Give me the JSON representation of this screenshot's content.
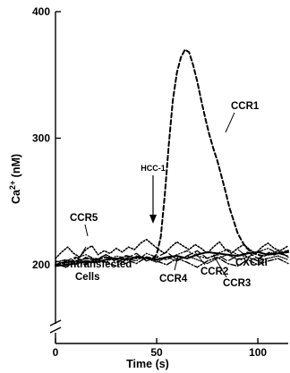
{
  "chart_data": {
    "type": "line",
    "title": "",
    "xlabel": "Time (s)",
    "ylabel": "Ca2+ (nM)",
    "ylabel_base": "Ca",
    "ylabel_sup": "2+",
    "ylabel_unit": " (nM)",
    "xlim": [
      0,
      115
    ],
    "ylim": [
      190,
      400
    ],
    "axis_break": true,
    "grid": false,
    "legend": "none",
    "x_ticks": [
      0,
      50,
      100
    ],
    "y_ticks": [
      200,
      300,
      400
    ],
    "x_tick_labels": [
      "0",
      "50",
      "100"
    ],
    "y_tick_labels": [
      "200",
      "300",
      "400"
    ],
    "stimulus": {
      "label": "HCC-1",
      "time": 48
    },
    "series": [
      {
        "name": "CCR1",
        "style": "dashed-bold",
        "x": [
          0,
          5,
          10,
          15,
          20,
          25,
          30,
          35,
          40,
          45,
          48,
          50,
          52,
          54,
          56,
          58,
          60,
          62,
          64,
          66,
          68,
          70,
          72,
          74,
          76,
          78,
          80,
          82,
          84,
          86,
          88,
          90,
          92,
          94,
          96,
          98,
          100,
          102,
          104,
          106,
          108,
          110,
          112,
          115
        ],
        "y": [
          200,
          202,
          203,
          205,
          204,
          206,
          204,
          207,
          205,
          206,
          205,
          208,
          222,
          255,
          295,
          330,
          352,
          364,
          370,
          368,
          358,
          345,
          330,
          316,
          303,
          292,
          282,
          270,
          258,
          245,
          235,
          225,
          219,
          214,
          211,
          209,
          208,
          207,
          208,
          210,
          208,
          209,
          210,
          211
        ]
      },
      {
        "name": "CCR5",
        "style": "dotted",
        "x": [
          0,
          3,
          6,
          9,
          12,
          15,
          18,
          21,
          24,
          27,
          30,
          33,
          36,
          39,
          42,
          45,
          48,
          51,
          54,
          57,
          60,
          63,
          66,
          69,
          72,
          75,
          78,
          81,
          84,
          87,
          90,
          93,
          96,
          99,
          102,
          105,
          108,
          111,
          115
        ],
        "y": [
          205,
          210,
          214,
          209,
          206,
          212,
          215,
          208,
          211,
          209,
          213,
          210,
          214,
          212,
          217,
          220,
          216,
          212,
          209,
          214,
          218,
          215,
          212,
          216,
          213,
          209,
          214,
          218,
          212,
          209,
          213,
          216,
          212,
          209,
          214,
          217,
          213,
          211,
          215
        ]
      },
      {
        "name": "Untransfected Cells",
        "style": "solid",
        "x": [
          0,
          5,
          10,
          15,
          20,
          25,
          30,
          35,
          40,
          45,
          50,
          55,
          60,
          65,
          70,
          75,
          80,
          85,
          90,
          95,
          100,
          105,
          110,
          115
        ],
        "y": [
          199,
          200,
          201,
          203,
          202,
          204,
          205,
          204,
          206,
          205,
          204,
          206,
          207,
          205,
          208,
          210,
          209,
          208,
          207,
          209,
          210,
          208,
          209,
          210
        ]
      },
      {
        "name": "CCR4",
        "style": "dash-dot",
        "x": [
          0,
          5,
          10,
          15,
          20,
          25,
          30,
          35,
          40,
          45,
          50,
          55,
          60,
          65,
          70,
          75,
          80,
          85,
          90,
          95,
          100,
          105,
          110,
          115
        ],
        "y": [
          201,
          198,
          203,
          200,
          205,
          202,
          199,
          204,
          201,
          206,
          203,
          200,
          205,
          202,
          198,
          203,
          206,
          201,
          199,
          204,
          200,
          203,
          205,
          201
        ]
      },
      {
        "name": "CCR2",
        "style": "dotted-fine",
        "x": [
          0,
          5,
          10,
          15,
          20,
          25,
          30,
          35,
          40,
          45,
          50,
          55,
          60,
          65,
          70,
          75,
          80,
          85,
          90,
          95,
          100,
          105,
          110,
          115
        ],
        "y": [
          202,
          204,
          200,
          206,
          203,
          208,
          204,
          201,
          207,
          205,
          202,
          206,
          203,
          207,
          204,
          201,
          205,
          208,
          204,
          206,
          203,
          205,
          207,
          204
        ]
      },
      {
        "name": "CCR3",
        "style": "long-dash",
        "x": [
          0,
          5,
          10,
          15,
          20,
          25,
          30,
          35,
          40,
          45,
          50,
          55,
          60,
          65,
          70,
          75,
          80,
          85,
          90,
          95,
          100,
          105,
          110,
          115
        ],
        "y": [
          200,
          203,
          206,
          201,
          204,
          208,
          202,
          205,
          209,
          203,
          206,
          210,
          204,
          207,
          211,
          205,
          208,
          203,
          207,
          210,
          205,
          208,
          211,
          206
        ]
      },
      {
        "name": "CXCRI",
        "style": "dash-dot-dot",
        "x": [
          0,
          5,
          10,
          15,
          20,
          25,
          30,
          35,
          40,
          45,
          50,
          55,
          60,
          65,
          70,
          75,
          80,
          85,
          90,
          95,
          100,
          105,
          110,
          115
        ],
        "y": [
          203,
          201,
          205,
          208,
          204,
          202,
          207,
          205,
          203,
          209,
          206,
          204,
          208,
          211,
          207,
          205,
          209,
          212,
          208,
          206,
          210,
          213,
          209,
          207
        ]
      }
    ]
  }
}
